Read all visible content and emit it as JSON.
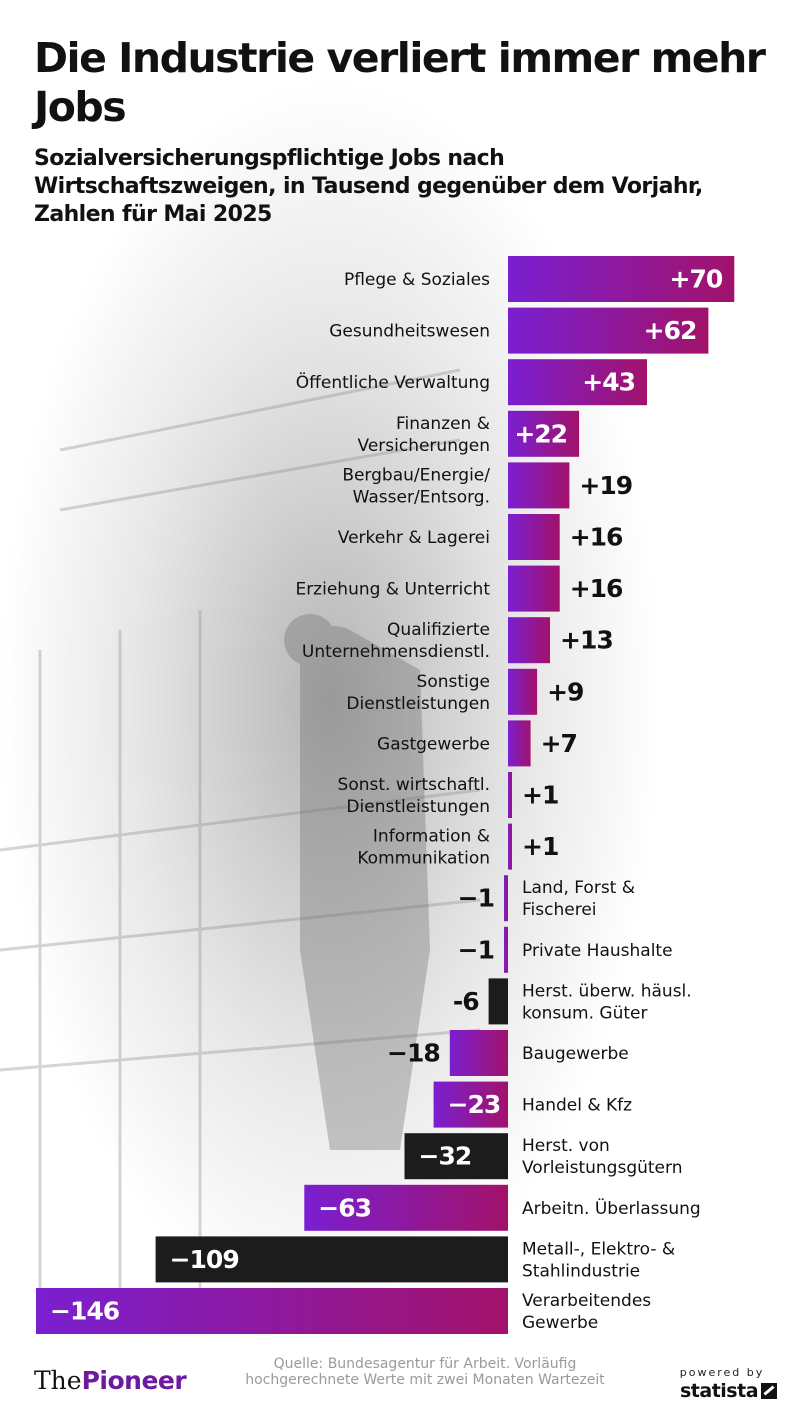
{
  "title": "Die Industrie verliert immer mehr Jobs",
  "subtitle": "Sozialversicherungspflichtige Jobs nach Wirtschaftszweigen, in Tausend gegenüber dem Vorjahr, Zahlen für Mai 2025",
  "footer": {
    "logo_the": "The",
    "logo_pioneer": "Pioneer",
    "source": "Quelle: Bundesagentur für Arbeit. Vorläufig hochgerechnete Werte mit zwei Monaten Wartezeit",
    "powered_by": "powered by",
    "statista": "statista"
  },
  "colors": {
    "gradient_start": "#7a1fd1",
    "gradient_end": "#a2126a",
    "highlight_bar": "#1c1c1c",
    "text": "#111111"
  },
  "chart_data": {
    "type": "bar",
    "orientation": "horizontal",
    "title": "Die Industrie verliert immer mehr Jobs",
    "subtitle": "Sozialversicherungspflichtige Jobs nach Wirtschaftszweigen, in Tausend gegenüber dem Vorjahr, Zahlen für Mai 2025",
    "unit": "Tausend",
    "categories": [
      "Pflege & Soziales",
      "Gesundheitswesen",
      "Öffentliche Verwaltung",
      "Finanzen & Versicherungen",
      "Bergbau/Energie/ Wasser/Entsorg.",
      "Verkehr & Lagerei",
      "Erziehung & Unterricht",
      "Qualifizierte Unternehmensdienstl.",
      "Sonstige Dienstleistungen",
      "Gastgewerbe",
      "Sonst. wirtschaftl. Dienstleistungen",
      "Information & Kommunikation",
      "Land, Forst & Fischerei",
      "Private Haushalte",
      "Herst. überw. häusl. konsum. Güter",
      "Baugewerbe",
      "Handel & Kfz",
      "Herst. von Vorleistungsgütern",
      "Arbeitn. Überlassung",
      "Metall-, Elektro- & Stahlindustrie",
      "Verarbeitendes Gewerbe"
    ],
    "label_lines": [
      [
        "Pflege & Soziales"
      ],
      [
        "Gesundheitswesen"
      ],
      [
        "Öffentliche Verwaltung"
      ],
      [
        "Finanzen &",
        "Versicherungen"
      ],
      [
        "Bergbau/Energie/",
        "Wasser/Entsorg."
      ],
      [
        "Verkehr & Lagerei"
      ],
      [
        "Erziehung & Unterricht"
      ],
      [
        "Qualifizierte",
        "Unternehmensdienstl."
      ],
      [
        "Sonstige",
        "Dienstleistungen"
      ],
      [
        "Gastgewerbe"
      ],
      [
        "Sonst. wirtschaftl.",
        "Dienstleistungen"
      ],
      [
        "Information &",
        "Kommunikation"
      ],
      [
        "Land, Forst &",
        "Fischerei"
      ],
      [
        "Private Haushalte"
      ],
      [
        "Herst. überw. häusl.",
        "konsum. Güter"
      ],
      [
        "Baugewerbe"
      ],
      [
        "Handel & Kfz"
      ],
      [
        "Herst. von",
        "Vorleistungsgütern"
      ],
      [
        "Arbeitn. Überlassung"
      ],
      [
        "Metall-, Elektro- &",
        "Stahlindustrie"
      ],
      [
        "Verarbeitendes",
        "Gewerbe"
      ]
    ],
    "values": [
      70,
      62,
      43,
      22,
      19,
      16,
      16,
      13,
      9,
      7,
      1,
      1,
      -1,
      -1,
      -6,
      -18,
      -23,
      -32,
      -63,
      -109,
      -146
    ],
    "value_labels": [
      "+70",
      "+62",
      "+43",
      "+22",
      "+19",
      "+16",
      "+16",
      "+13",
      "+9",
      "+7",
      "+1",
      "+1",
      "−1",
      "−1",
      "-6",
      "−18",
      "−23",
      "−32",
      "−63",
      "−109",
      "−146"
    ],
    "highlighted": [
      false,
      false,
      false,
      false,
      false,
      false,
      false,
      false,
      false,
      false,
      false,
      false,
      false,
      false,
      true,
      false,
      false,
      true,
      false,
      true,
      false
    ],
    "xlim": [
      -146,
      70
    ],
    "grid": false,
    "legend": "none"
  }
}
